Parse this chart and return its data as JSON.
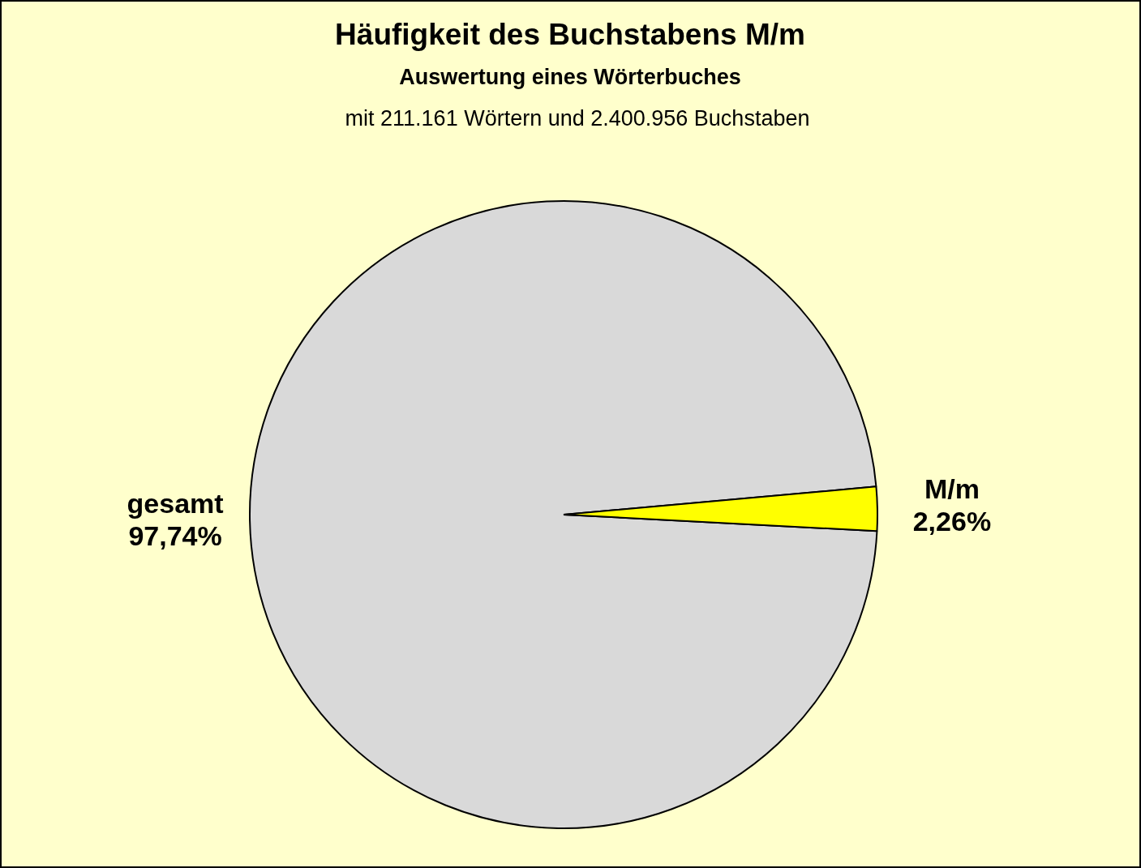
{
  "chart_data": {
    "type": "pie",
    "title": "Häufigkeit des Buchstabens M/m",
    "subtitle": "Auswertung eines Wörterbuches",
    "annotations": [
      "mit 211.161 Wörtern und 2.400.956 Buchstaben"
    ],
    "categories": [
      "gesamt",
      "M/m"
    ],
    "values": [
      97.74,
      2.26
    ],
    "colors": [
      "#d9d9d9",
      "#ffff00"
    ],
    "value_labels": [
      "97,74%",
      "2,26%"
    ],
    "legend": false
  }
}
